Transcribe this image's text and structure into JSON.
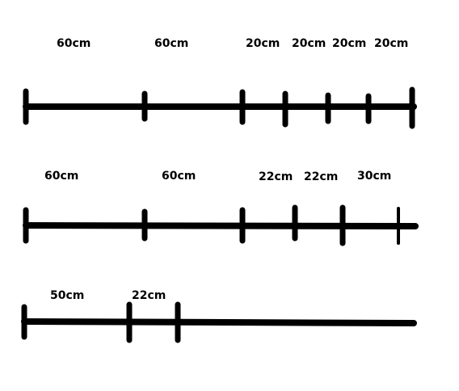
{
  "diagram": {
    "stroke_color": "#000000",
    "background": "#ffffff",
    "rulers": [
      {
        "labels": [
          {
            "text": "60cm"
          },
          {
            "text": "60cm"
          },
          {
            "text": "20cm"
          },
          {
            "text": "20cm"
          },
          {
            "text": "20cm"
          },
          {
            "text": "20cm"
          }
        ]
      },
      {
        "labels": [
          {
            "text": "60cm"
          },
          {
            "text": "60cm"
          },
          {
            "text": "22cm"
          },
          {
            "text": "22cm"
          },
          {
            "text": "30cm"
          }
        ]
      },
      {
        "labels": [
          {
            "text": "50cm"
          },
          {
            "text": "22cm"
          }
        ]
      }
    ]
  }
}
